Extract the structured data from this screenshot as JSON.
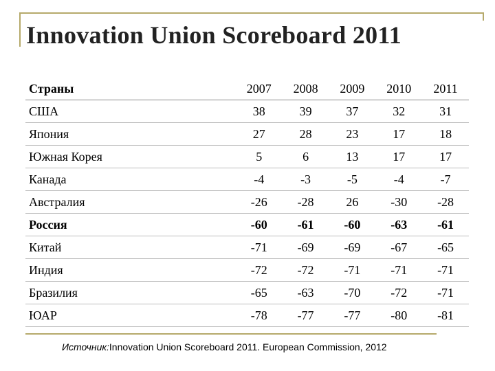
{
  "title": "Innovation Union Scoreboard 2011",
  "table": {
    "header": [
      "Страны",
      "2007",
      "2008",
      "2009",
      "2010",
      "2011"
    ],
    "rows": [
      {
        "country": "США",
        "values": [
          "38",
          "39",
          "37",
          "32",
          "31"
        ],
        "bold": false
      },
      {
        "country": "Япония",
        "values": [
          "27",
          "28",
          "23",
          "17",
          "18"
        ],
        "bold": false
      },
      {
        "country": "Южная Корея",
        "values": [
          "5",
          "6",
          "13",
          "17",
          "17"
        ],
        "bold": false
      },
      {
        "country": "Канада",
        "values": [
          "-4",
          "-3",
          "-5",
          "-4",
          "-7"
        ],
        "bold": false
      },
      {
        "country": "Австралия",
        "values": [
          "-26",
          "-28",
          "26",
          "-30",
          "-28"
        ],
        "bold": false
      },
      {
        "country": "Россия",
        "values": [
          "-60",
          "-61",
          "-60",
          "-63",
          "-61"
        ],
        "bold": true
      },
      {
        "country": "Китай",
        "values": [
          "-71",
          "-69",
          "-69",
          "-67",
          "-65"
        ],
        "bold": false
      },
      {
        "country": "Индия",
        "values": [
          "-72",
          "-72",
          "-71",
          "-71",
          "-71"
        ],
        "bold": false
      },
      {
        "country": "Бразилия",
        "values": [
          "-65",
          "-63",
          "-70",
          "-72",
          "-71"
        ],
        "bold": false
      },
      {
        "country": "ЮАР",
        "values": [
          "-78",
          "-77",
          "-77",
          "-80",
          "-81"
        ],
        "bold": false
      }
    ]
  },
  "source": {
    "label": "Источник:",
    "text": "Innovation Union Scoreboard 2011. European Commission, 2012"
  },
  "colors": {
    "frame": "#b5a96a"
  }
}
